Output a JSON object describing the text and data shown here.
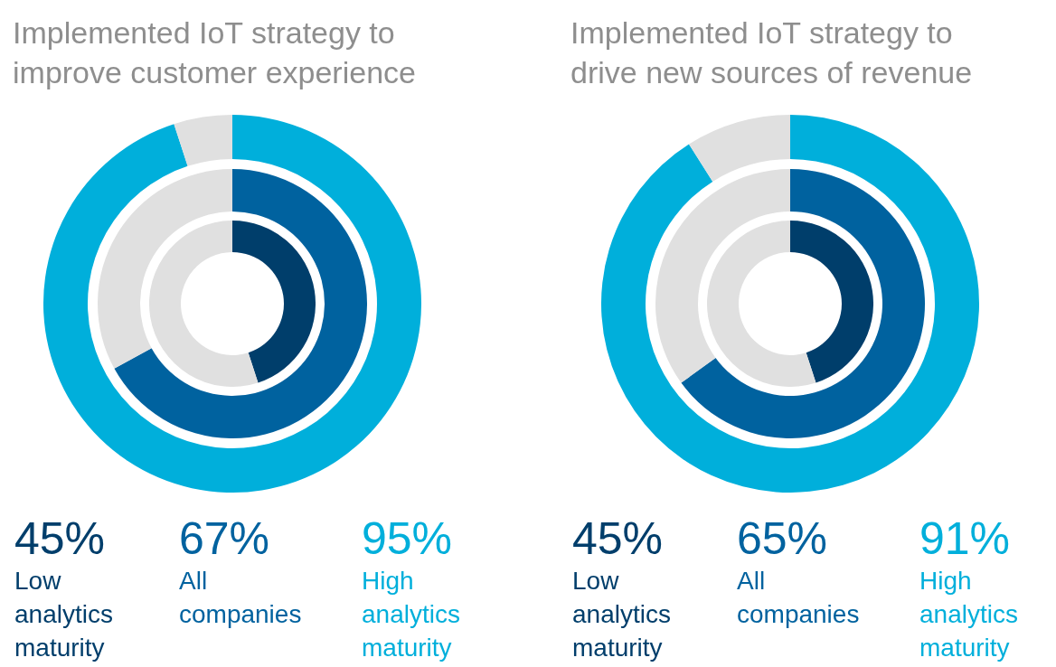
{
  "chart_data": [
    {
      "type": "donut",
      "title": "Implemented IoT strategy to improve customer experience",
      "annotations": [
        "45%",
        "67%",
        "95%"
      ],
      "series": [
        {
          "name": "Low analytics maturity",
          "colors": [
            "#003e6b",
            "#e0e0e0"
          ],
          "values": [
            45,
            55
          ]
        },
        {
          "name": "All companies",
          "colors": [
            "#00629f",
            "#e0e0e0"
          ],
          "values": [
            67,
            33
          ]
        },
        {
          "name": "High analytics maturity",
          "colors": [
            "#00afdb",
            "#e0e0e0"
          ],
          "values": [
            95,
            5
          ]
        }
      ]
    },
    {
      "type": "donut",
      "title": "Implemented IoT strategy to drive new sources of revenue",
      "annotations": [
        "45%",
        "65%",
        "91%"
      ],
      "series": [
        {
          "name": "Low analytics maturity",
          "colors": [
            "#003e6b",
            "#e0e0e0"
          ],
          "values": [
            45,
            55
          ]
        },
        {
          "name": "All companies",
          "colors": [
            "#00629f",
            "#e0e0e0"
          ],
          "values": [
            65,
            35
          ]
        },
        {
          "name": "High analytics maturity",
          "colors": [
            "#00afdb",
            "#e0e0e0"
          ],
          "values": [
            91,
            9
          ]
        }
      ]
    }
  ]
}
